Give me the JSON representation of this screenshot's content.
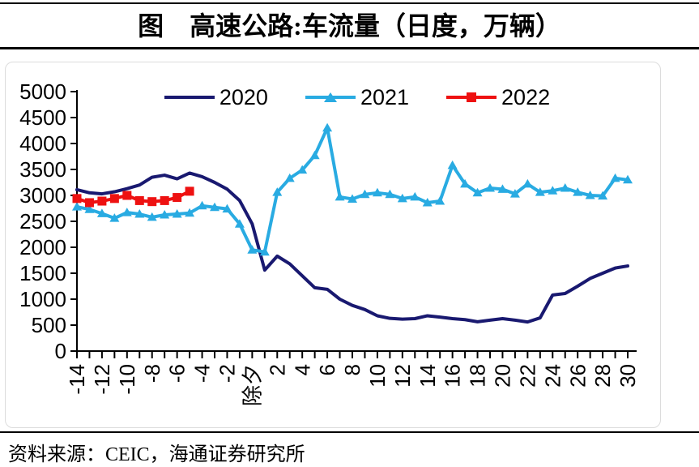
{
  "header": {
    "title": "图　高速公路:车流量（日度，万辆）"
  },
  "footer": {
    "source": "资料来源：CEIC，海通证券研究所"
  },
  "chart_data": {
    "type": "line",
    "title": "高速公路:车流量（日度，万辆）",
    "xlabel": "",
    "ylabel": "",
    "ylim": [
      0,
      5000
    ],
    "xlim": [
      -14,
      30
    ],
    "grid": false,
    "legend_position": "top",
    "x_note": "days relative to 除夕 (Lunar New Year Eve), daily points, step 1",
    "y_ticks": [
      0,
      500,
      1000,
      1500,
      2000,
      2500,
      3000,
      3500,
      4000,
      4500,
      5000
    ],
    "x_ticks": [
      {
        "pos": -14,
        "label": "-14"
      },
      {
        "pos": -12,
        "label": "-12"
      },
      {
        "pos": -10,
        "label": "-10"
      },
      {
        "pos": -8,
        "label": "-8"
      },
      {
        "pos": -6,
        "label": "-6"
      },
      {
        "pos": -4,
        "label": "-4"
      },
      {
        "pos": -2,
        "label": "-2"
      },
      {
        "pos": 0,
        "label": "除夕"
      },
      {
        "pos": 2,
        "label": "2"
      },
      {
        "pos": 4,
        "label": "4"
      },
      {
        "pos": 6,
        "label": "6"
      },
      {
        "pos": 8,
        "label": "8"
      },
      {
        "pos": 10,
        "label": "10"
      },
      {
        "pos": 12,
        "label": "12"
      },
      {
        "pos": 14,
        "label": "14"
      },
      {
        "pos": 16,
        "label": "16"
      },
      {
        "pos": 18,
        "label": "18"
      },
      {
        "pos": 20,
        "label": "20"
      },
      {
        "pos": 22,
        "label": "22"
      },
      {
        "pos": 24,
        "label": "24"
      },
      {
        "pos": 26,
        "label": "26"
      },
      {
        "pos": 28,
        "label": "28"
      },
      {
        "pos": 30,
        "label": "30"
      }
    ],
    "series": [
      {
        "name": "2020",
        "color": "#191970",
        "marker": "none",
        "line_width": 4,
        "x_start": -14,
        "x_step": 1,
        "values": [
          3110,
          3050,
          3030,
          3070,
          3130,
          3200,
          3350,
          3390,
          3320,
          3430,
          3360,
          3250,
          3120,
          2900,
          2450,
          1560,
          1830,
          1680,
          1450,
          1220,
          1190,
          1000,
          880,
          800,
          680,
          630,
          615,
          625,
          680,
          655,
          625,
          605,
          565,
          595,
          625,
          595,
          560,
          640,
          1080,
          1110,
          1250,
          1400,
          1500,
          1600,
          1640
        ]
      },
      {
        "name": "2021",
        "color": "#29ABE2",
        "marker": "triangle",
        "line_width": 4,
        "x_start": -14,
        "x_step": 1,
        "values": [
          2780,
          2730,
          2650,
          2560,
          2670,
          2640,
          2580,
          2625,
          2640,
          2660,
          2800,
          2770,
          2740,
          2450,
          1950,
          1910,
          3060,
          3330,
          3490,
          3770,
          4300,
          2970,
          2930,
          3020,
          3050,
          3020,
          2940,
          2970,
          2860,
          2890,
          3580,
          3220,
          3050,
          3140,
          3120,
          3030,
          3220,
          3060,
          3090,
          3140,
          3060,
          3000,
          2990,
          3330,
          3300
        ]
      },
      {
        "name": "2022",
        "color": "#EE1111",
        "marker": "square",
        "line_width": 4,
        "x_start": -14,
        "x_step": 1,
        "values": [
          2940,
          2860,
          2890,
          2940,
          3000,
          2900,
          2880,
          2900,
          2960,
          3080
        ]
      }
    ]
  }
}
